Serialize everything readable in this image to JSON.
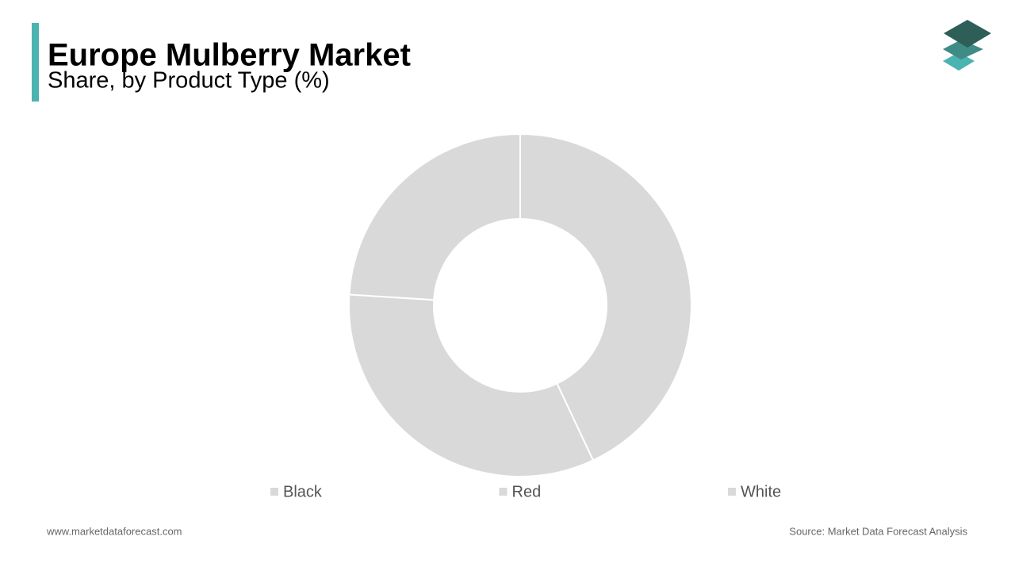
{
  "chart_data": {
    "type": "pie",
    "title": "Europe  Mulberry  Market",
    "subtitle": "Share, by Product Type (%)",
    "categories": [
      "Black",
      "Red",
      "White"
    ],
    "values": [
      43,
      33,
      24
    ],
    "colors": [
      "#d9d9d9",
      "#d9d9d9",
      "#d9d9d9"
    ],
    "donut": true
  },
  "footer": {
    "website": "www.marketdataforecast.com",
    "source": "Source: Market Data Forecast Analysis"
  }
}
